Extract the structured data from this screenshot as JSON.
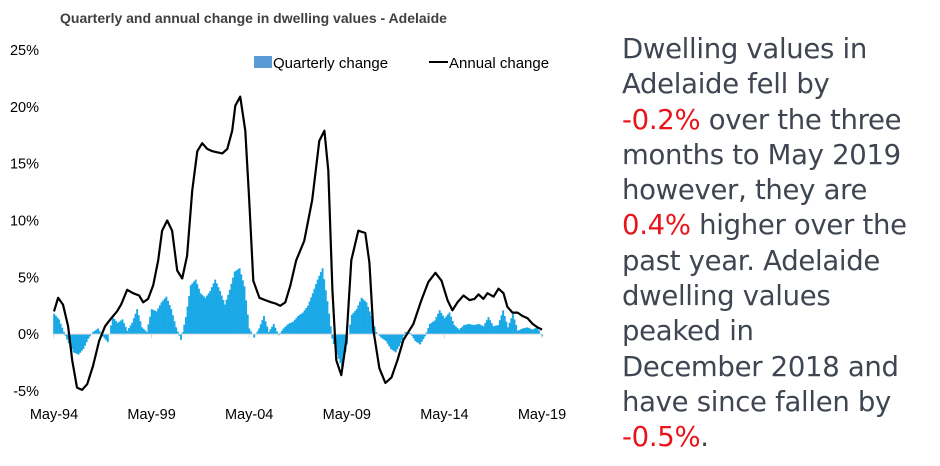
{
  "chart_data": {
    "type": "bar+line",
    "title": "Quarterly and annual change in dwelling values - Adelaide",
    "xlabel": "",
    "ylabel": "",
    "ylim": [
      -5,
      25
    ],
    "y_ticks": [
      "25%",
      "20%",
      "15%",
      "10%",
      "5%",
      "0%",
      "-5%"
    ],
    "y_tick_values": [
      25,
      20,
      15,
      10,
      5,
      0,
      -5
    ],
    "x_ticks": [
      "May-94",
      "May-99",
      "May-04",
      "May-09",
      "May-14",
      "May-19"
    ],
    "x_tick_values": [
      1994.33,
      1999.33,
      2004.33,
      2009.33,
      2014.33,
      2019.33
    ],
    "x_range": [
      1994.33,
      2019.33
    ],
    "grid": false,
    "legend": {
      "position": "top-right",
      "entries": [
        {
          "name": "Quarterly change",
          "type": "bar",
          "color": "#5b9bd5"
        },
        {
          "name": "Annual change",
          "type": "line",
          "color": "#000000"
        }
      ]
    },
    "series": [
      {
        "name": "Quarterly change",
        "type": "bar",
        "color": "#1aa9e6",
        "x": [
          1994.33,
          1994.58,
          1994.83,
          1995.08,
          1995.33,
          1995.58,
          1995.83,
          1996.08,
          1996.33,
          1996.58,
          1996.83,
          1997.08,
          1997.33,
          1997.58,
          1997.83,
          1998.08,
          1998.33,
          1998.58,
          1998.83,
          1999.08,
          1999.33,
          1999.58,
          1999.83,
          2000.08,
          2000.33,
          2000.58,
          2000.83,
          2001.08,
          2001.33,
          2001.58,
          2001.83,
          2002.08,
          2002.33,
          2002.58,
          2002.83,
          2003.08,
          2003.33,
          2003.58,
          2003.83,
          2004.08,
          2004.33,
          2004.58,
          2004.83,
          2005.08,
          2005.33,
          2005.58,
          2005.83,
          2006.08,
          2006.33,
          2006.58,
          2006.83,
          2007.08,
          2007.33,
          2007.58,
          2007.83,
          2008.08,
          2008.33,
          2008.58,
          2008.83,
          2009.08,
          2009.33,
          2009.58,
          2009.83,
          2010.08,
          2010.33,
          2010.58,
          2010.83,
          2011.08,
          2011.33,
          2011.58,
          2011.83,
          2012.08,
          2012.33,
          2012.58,
          2012.83,
          2013.08,
          2013.33,
          2013.58,
          2013.83,
          2014.08,
          2014.33,
          2014.58,
          2014.83,
          2015.08,
          2015.33,
          2015.58,
          2015.83,
          2016.08,
          2016.33,
          2016.58,
          2016.83,
          2017.08,
          2017.33,
          2017.58,
          2017.83,
          2018.08,
          2018.33,
          2018.58,
          2018.83,
          2019.08,
          2019.33
        ],
        "values": [
          1.8,
          1.3,
          0.2,
          -0.8,
          -1.6,
          -1.8,
          -1.3,
          -0.4,
          0.2,
          0.5,
          -0.2,
          -0.7,
          1.5,
          1.0,
          1.3,
          0.3,
          1.0,
          2.2,
          0.6,
          0.2,
          2.2,
          2.0,
          2.8,
          3.3,
          2.2,
          0.6,
          -0.5,
          1.5,
          4.3,
          4.8,
          3.6,
          3.2,
          3.8,
          4.8,
          3.8,
          2.6,
          3.9,
          5.5,
          5.8,
          4.2,
          0.5,
          -0.3,
          0.5,
          1.6,
          0.2,
          0.9,
          -0.1,
          0.5,
          0.9,
          1.1,
          1.6,
          1.9,
          2.5,
          3.6,
          4.8,
          5.8,
          2.9,
          -0.4,
          -1.8,
          -2.9,
          -0.9,
          1.7,
          2.2,
          3.2,
          2.8,
          1.6,
          0.2,
          -0.3,
          -0.6,
          -1.3,
          -1.6,
          -0.8,
          0.2,
          0.1,
          -0.6,
          -0.9,
          -0.2,
          0.9,
          1.2,
          2.1,
          1.4,
          1.9,
          0.8,
          0.4,
          0.8,
          0.9,
          0.8,
          0.9,
          0.7,
          1.5,
          0.7,
          0.8,
          2.1,
          0.6,
          1.8,
          0.3,
          0.5,
          0.6,
          0.4,
          0.6,
          -0.2
        ]
      },
      {
        "name": "Annual change",
        "type": "line",
        "color": "#000000",
        "x": [
          1994.33,
          1994.54,
          1994.79,
          1995.05,
          1995.26,
          1995.51,
          1995.77,
          1996.03,
          1996.33,
          1996.64,
          1996.95,
          1997.26,
          1997.56,
          1997.77,
          1998.08,
          1998.38,
          1998.69,
          1998.9,
          1999.15,
          1999.41,
          1999.67,
          1999.87,
          2000.13,
          2000.38,
          2000.64,
          2000.9,
          2001.15,
          2001.41,
          2001.67,
          2001.92,
          2002.18,
          2002.44,
          2002.69,
          2002.95,
          2003.21,
          2003.46,
          2003.62,
          2003.87,
          2004.13,
          2004.33,
          2004.54,
          2004.85,
          2005.15,
          2005.46,
          2005.67,
          2005.92,
          2006.18,
          2006.44,
          2006.74,
          2007.15,
          2007.56,
          2007.92,
          2008.18,
          2008.38,
          2008.59,
          2008.79,
          2009.05,
          2009.31,
          2009.56,
          2009.92,
          2010.28,
          2010.49,
          2010.69,
          2011.0,
          2011.31,
          2011.62,
          2011.92,
          2012.23,
          2012.74,
          2013.15,
          2013.51,
          2013.87,
          2014.18,
          2014.49,
          2014.74,
          2015.0,
          2015.31,
          2015.62,
          2015.87,
          2016.08,
          2016.33,
          2016.54,
          2016.85,
          2017.1,
          2017.36,
          2017.56,
          2017.82,
          2018.08,
          2018.33,
          2018.59,
          2018.85,
          2019.1,
          2019.33
        ],
        "values": [
          2.0,
          3.2,
          2.6,
          0.7,
          -2.3,
          -4.7,
          -4.9,
          -4.4,
          -2.8,
          -0.6,
          0.7,
          1.4,
          2.0,
          2.6,
          3.9,
          3.6,
          3.4,
          2.8,
          3.1,
          4.3,
          6.5,
          9.1,
          10.0,
          9.1,
          5.6,
          4.9,
          6.9,
          12.6,
          16.1,
          16.8,
          16.3,
          16.1,
          16.0,
          15.9,
          16.3,
          17.9,
          20.1,
          20.9,
          17.9,
          11.8,
          4.7,
          3.2,
          3.0,
          2.8,
          2.7,
          2.5,
          2.8,
          4.3,
          6.5,
          8.2,
          11.8,
          17.0,
          17.9,
          14.4,
          3.9,
          -2.3,
          -3.6,
          -0.5,
          6.5,
          9.1,
          8.9,
          6.3,
          0.4,
          -3.0,
          -4.3,
          -3.8,
          -2.3,
          -0.5,
          0.9,
          3.0,
          4.6,
          5.4,
          4.7,
          3.0,
          2.1,
          2.8,
          3.4,
          3.0,
          3.1,
          3.5,
          3.1,
          3.6,
          3.3,
          4.0,
          3.6,
          2.4,
          1.9,
          1.9,
          1.6,
          1.4,
          0.9,
          0.6,
          0.4
        ]
      }
    ]
  },
  "commentary": {
    "lines": [
      [
        {
          "text": "Dwelling values in",
          "hl": false
        }
      ],
      [
        {
          "text": "Adelaide fell by",
          "hl": false
        }
      ],
      [
        {
          "text": "-0.2%",
          "hl": true
        },
        {
          "text": " over the three",
          "hl": false
        }
      ],
      [
        {
          "text": "months to May 2019",
          "hl": false
        }
      ],
      [
        {
          "text": "however, they are",
          "hl": false
        }
      ],
      [
        {
          "text": "0.4%",
          "hl": true
        },
        {
          "text": " higher over the",
          "hl": false
        }
      ],
      [
        {
          "text": "past year. Adelaide",
          "hl": false
        }
      ],
      [
        {
          "text": "dwelling values",
          "hl": false
        }
      ],
      [
        {
          "text": "peaked in",
          "hl": false
        }
      ],
      [
        {
          "text": "December 2018 and",
          "hl": false
        }
      ],
      [
        {
          "text": "have since fallen by",
          "hl": false
        }
      ],
      [
        {
          "text": "-0.5%",
          "hl": true
        },
        {
          "text": ".",
          "hl": false
        }
      ]
    ],
    "text_color": "#3f4652",
    "highlight_color": "#e8141a"
  }
}
